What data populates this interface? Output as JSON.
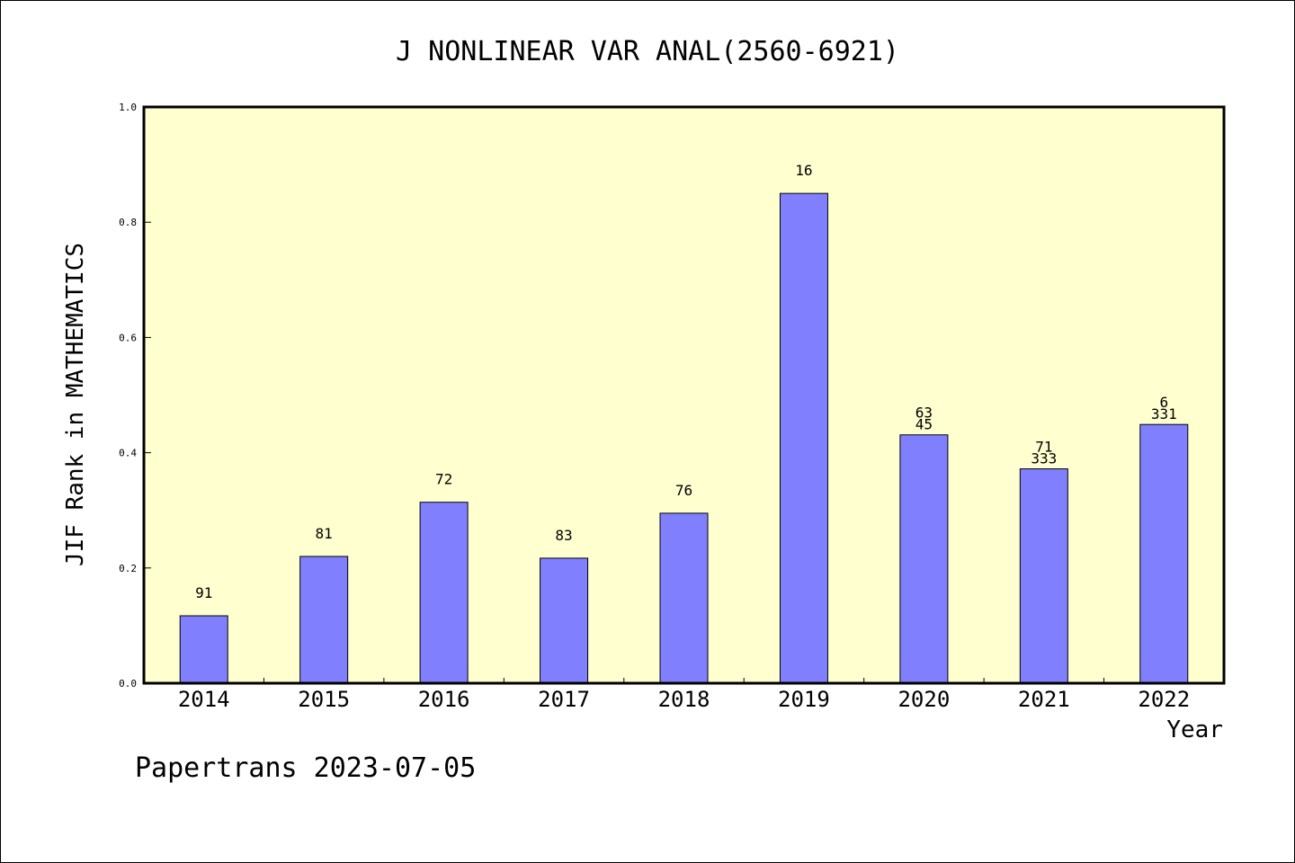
{
  "chart_data": {
    "type": "bar",
    "title": "J NONLINEAR VAR ANAL(2560-6921)",
    "xlabel": "Year",
    "ylabel": "JIF Rank in MATHEMATICS",
    "footer": "Papertrans 2023-07-05",
    "categories": [
      "2014",
      "2015",
      "2016",
      "2017",
      "2018",
      "2019",
      "2020",
      "2021",
      "2022"
    ],
    "values": [
      0.117,
      0.22,
      0.314,
      0.217,
      0.295,
      0.85,
      0.431,
      0.372,
      0.449
    ],
    "bar_labels": [
      [
        "91"
      ],
      [
        "81"
      ],
      [
        "72"
      ],
      [
        "83"
      ],
      [
        "76"
      ],
      [
        "16"
      ],
      [
        "63",
        "45"
      ],
      [
        "71",
        "333"
      ],
      [
        "6",
        "331"
      ]
    ],
    "ylim": [
      0,
      1.0
    ],
    "yticks": [
      "0.0",
      "0.2",
      "0.4",
      "0.6",
      "0.8",
      "1.0"
    ],
    "colors": {
      "plot_background": "#FFFFD0",
      "bar_fill": "#8080FF",
      "bar_stroke": "#000000"
    },
    "grid": false,
    "legend": "none"
  }
}
